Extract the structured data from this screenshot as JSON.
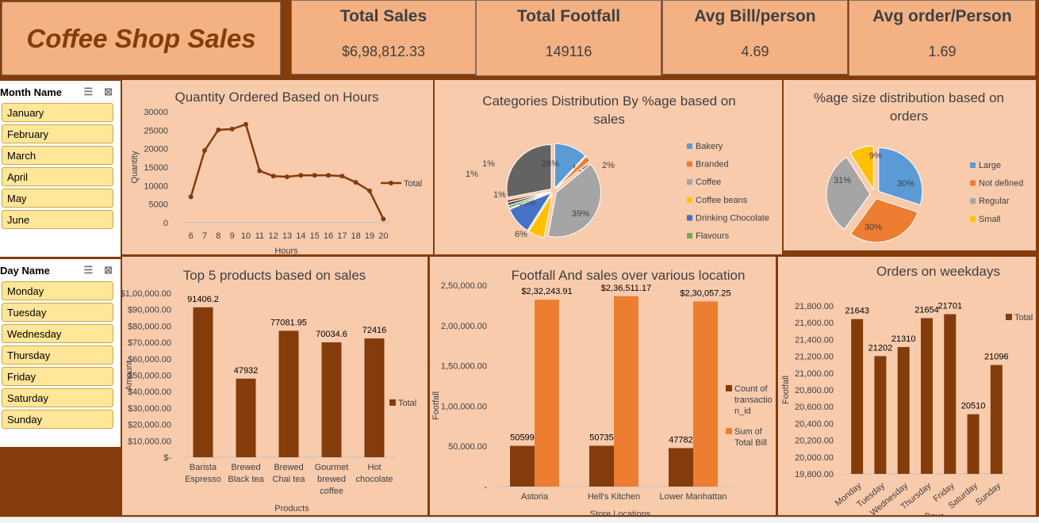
{
  "dashboard": {
    "title": "Coffee Shop Sales"
  },
  "kpis": [
    {
      "title": "Total Sales",
      "value": "$6,98,812.33"
    },
    {
      "title": "Total Footfall",
      "value": "149116"
    },
    {
      "title": "Avg Bill/person",
      "value": "4.69"
    },
    {
      "title": "Avg order/Person",
      "value": "1.69"
    }
  ],
  "slicers": {
    "month": {
      "title": "Month Name",
      "items": [
        "January",
        "February",
        "March",
        "April",
        "May",
        "June"
      ]
    },
    "day": {
      "title": "Day Name",
      "items": [
        "Monday",
        "Tuesday",
        "Wednesday",
        "Thursday",
        "Friday",
        "Saturday",
        "Sunday"
      ]
    }
  },
  "chart_data": [
    {
      "type": "line",
      "title": "Quantity  Ordered Based on Hours",
      "xlabel": "Hours",
      "ylabel": "Quantity",
      "x": [
        6,
        7,
        8,
        9,
        10,
        11,
        12,
        13,
        14,
        15,
        16,
        17,
        18,
        19,
        20
      ],
      "series": [
        {
          "name": "Total",
          "values": [
            7000,
            19500,
            25100,
            25300,
            26600,
            14000,
            12600,
            12400,
            12800,
            12800,
            12800,
            12600,
            10900,
            8600,
            1000
          ]
        }
      ],
      "y_ticks": [
        "0",
        "5000",
        "10000",
        "15000",
        "20000",
        "25000",
        "30000"
      ],
      "ylim": [
        0,
        30000
      ],
      "legend": "right",
      "color": "#843c0b"
    },
    {
      "type": "pie",
      "title": "Categories Distribution By %age based on sales",
      "slices": [
        {
          "name": "Bakery",
          "value": 12,
          "label": "12%",
          "color": "#5b9bd5"
        },
        {
          "name": "Branded",
          "value": 2,
          "label": "2%",
          "color": "#ed7d31"
        },
        {
          "name": "Coffee",
          "value": 39,
          "label": "39%",
          "color": "#a5a5a5"
        },
        {
          "name": "Coffee beans",
          "value": 6,
          "label": "6%",
          "color": "#ffc000"
        },
        {
          "name": "Drinking Chocolate",
          "value": 10,
          "label": "10%",
          "color": "#4472c4"
        },
        {
          "name": "Flavours",
          "value": 1,
          "label": "1%",
          "color": "#70ad47"
        },
        {
          "name": "",
          "value": 1,
          "label": "1%",
          "color": "#264478"
        },
        {
          "name": "",
          "value": 1,
          "label": "1%",
          "color": "#9e480e"
        },
        {
          "name": "",
          "value": 28,
          "label": "28%",
          "color": "#636363"
        }
      ],
      "legend": "right"
    },
    {
      "type": "pie",
      "title": "%age size distribution based on orders",
      "slices": [
        {
          "name": "Large",
          "value": 30,
          "label": "30%",
          "color": "#5b9bd5"
        },
        {
          "name": "Not defined",
          "value": 30,
          "label": "30%",
          "color": "#ed7d31"
        },
        {
          "name": "Regular",
          "value": 31,
          "label": "31%",
          "color": "#a5a5a5"
        },
        {
          "name": "Small",
          "value": 9,
          "label": "9%",
          "color": "#ffc000"
        }
      ],
      "legend": "right"
    },
    {
      "type": "bar",
      "title": "Top 5 products based on sales",
      "xlabel": "Products",
      "ylabel": "Amount",
      "categories": [
        [
          "Barista",
          "Espresso"
        ],
        [
          "Brewed",
          "Black tea"
        ],
        [
          "Brewed",
          "Chai tea"
        ],
        [
          "Gourmet",
          "brewed",
          "coffee"
        ],
        [
          "Hot",
          "chocolate"
        ]
      ],
      "series": [
        {
          "name": "Total",
          "values": [
            91406.2,
            47932,
            77081.95,
            70034.6,
            72416
          ],
          "labels": [
            "91406.2",
            "47932",
            "77081.95",
            "70034.6",
            "72416"
          ]
        }
      ],
      "y_ticks": [
        "$-",
        "$10,000.00",
        "$20,000.00",
        "$30,000.00",
        "$40,000.00",
        "$50,000.00",
        "$60,000.00",
        "$70,000.00",
        "$80,000.00",
        "$90,000.00",
        "$1,00,000.00"
      ],
      "ylim": [
        0,
        100000
      ],
      "legend": "right",
      "color": "#843c0b"
    },
    {
      "type": "bar",
      "title": "Footfall And sales over various location",
      "xlabel": "Store Locations",
      "ylabel": "Footfall",
      "categories": [
        "Astoria",
        "Hell's Kitchen",
        "Lower Manhattan"
      ],
      "series": [
        {
          "name": "Count of transaction_id",
          "legend_lines": [
            "Count of",
            "transactio",
            "n_id"
          ],
          "values": [
            50599,
            50735,
            47782
          ],
          "labels": [
            "50599",
            "50735",
            "47782"
          ],
          "color": "#843c0b"
        },
        {
          "name": "Sum of Total Bill",
          "legend_lines": [
            "Sum of",
            "Total Bill"
          ],
          "values": [
            232243.91,
            236511.17,
            230057.25
          ],
          "labels": [
            "$2,32,243.91",
            "$2,36,511.17",
            "$2,30,057.25"
          ],
          "color": "#ed7d31"
        }
      ],
      "y_ticks": [
        "-",
        "50,000.00",
        "1,00,000.00",
        "1,50,000.00",
        "2,00,000.00",
        "2,50,000.00"
      ],
      "ylim": [
        0,
        260000
      ],
      "legend": "right"
    },
    {
      "type": "bar",
      "title": "Orders on weekdays",
      "xlabel": "Days",
      "ylabel": "Footfall",
      "categories": [
        "Monday",
        "Tuesday",
        "Wednesday",
        "Thursday",
        "Friday",
        "Saturday",
        "Sunday"
      ],
      "series": [
        {
          "name": "Total",
          "values": [
            21643,
            21202,
            21310,
            21654,
            21701,
            20510,
            21096
          ],
          "labels": [
            "21643",
            "21202",
            "21310",
            "21654",
            "21701",
            "20510",
            "21096"
          ]
        }
      ],
      "y_ticks": [
        "19,800.00",
        "20,000.00",
        "20,200.00",
        "20,400.00",
        "20,600.00",
        "20,800.00",
        "21,000.00",
        "21,200.00",
        "21,400.00",
        "21,600.00",
        "21,800.00"
      ],
      "ylim": [
        19800,
        21800
      ],
      "legend": "top-right",
      "color": "#843c0b"
    }
  ]
}
